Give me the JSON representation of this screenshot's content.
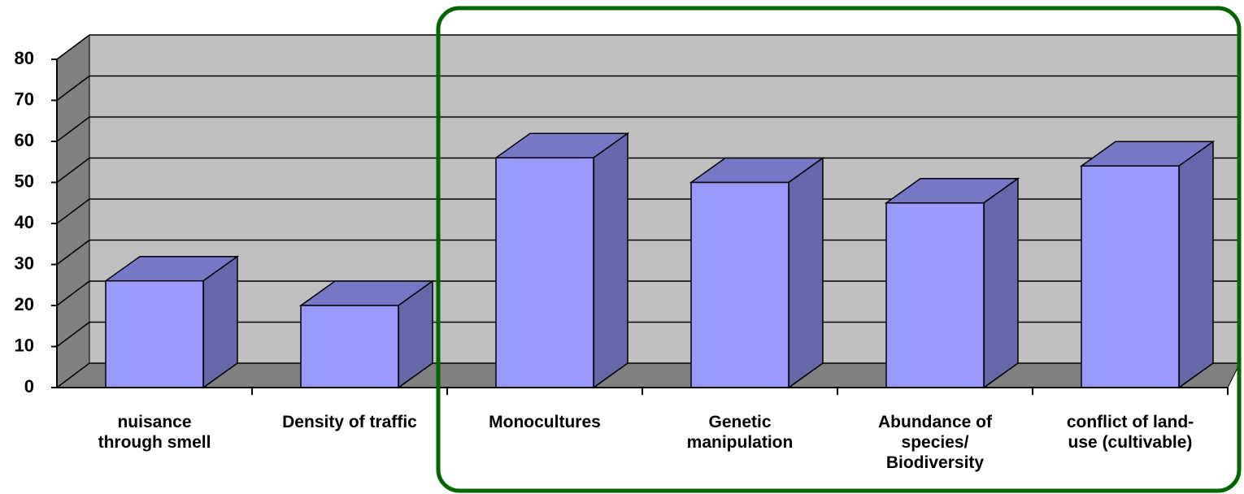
{
  "chart_data": {
    "type": "bar3d",
    "categories": [
      "nuisance through smell",
      "Density of traffic",
      "Monocultures",
      "Genetic manipulation",
      "Abundance of species/ Biodiversity",
      "conflict of land-use (cultivable)"
    ],
    "values": [
      26,
      20,
      56,
      50,
      45,
      54
    ],
    "color": "#9999ff",
    "ylim": [
      0,
      80
    ],
    "yticks": [
      0,
      10,
      20,
      30,
      40,
      50,
      60,
      70,
      80
    ],
    "grid": true
  }
}
